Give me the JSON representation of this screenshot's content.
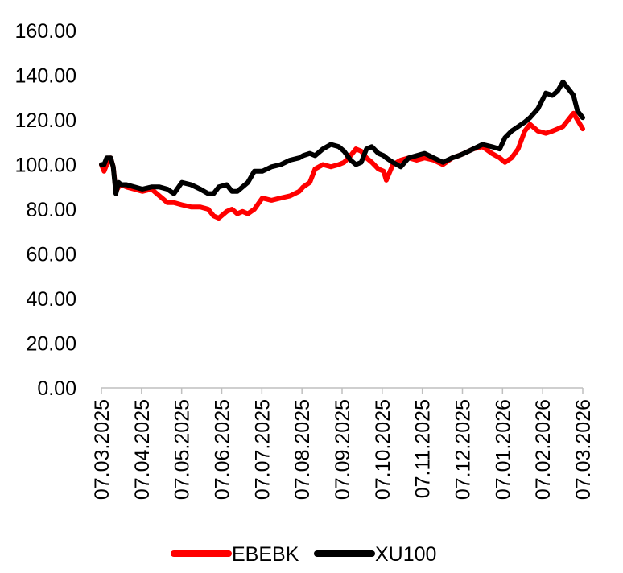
{
  "chart_data": {
    "type": "line",
    "title": "",
    "xlabel": "",
    "ylabel": "",
    "ylim": [
      0,
      160
    ],
    "y_ticks": [
      "0.00",
      "20.00",
      "40.00",
      "60.00",
      "80.00",
      "100.00",
      "120.00",
      "140.00",
      "160.00"
    ],
    "x_ticks": [
      "07.03.2025",
      "07.04.2025",
      "07.05.2025",
      "07.06.2025",
      "07.07.2025",
      "07.08.2025",
      "07.09.2025",
      "07.10.2025",
      "07.11.2025",
      "07.12.2025",
      "07.01.2026",
      "07.02.2026",
      "07.03.2026"
    ],
    "xlim": [
      "2025-03-07",
      "2026-03-07"
    ],
    "grid": false,
    "legend_position": "bottom",
    "series": [
      {
        "name": "EBEBK",
        "color": "#ff0000",
        "x": [
          "2025-03-07",
          "2025-03-09",
          "2025-03-11",
          "2025-03-14",
          "2025-03-16",
          "2025-03-18",
          "2025-03-20",
          "2025-03-22",
          "2025-03-26",
          "2025-04-01",
          "2025-04-07",
          "2025-04-14",
          "2025-04-20",
          "2025-04-26",
          "2025-05-01",
          "2025-05-07",
          "2025-05-14",
          "2025-05-21",
          "2025-05-27",
          "2025-05-31",
          "2025-06-04",
          "2025-06-10",
          "2025-06-14",
          "2025-06-18",
          "2025-06-22",
          "2025-06-26",
          "2025-07-01",
          "2025-07-07",
          "2025-07-14",
          "2025-07-21",
          "2025-07-28",
          "2025-08-04",
          "2025-08-07",
          "2025-08-12",
          "2025-08-16",
          "2025-08-22",
          "2025-08-28",
          "2025-09-03",
          "2025-09-07",
          "2025-09-12",
          "2025-09-16",
          "2025-09-20",
          "2025-09-24",
          "2025-09-28",
          "2025-10-03",
          "2025-10-07",
          "2025-10-09",
          "2025-10-14",
          "2025-10-20",
          "2025-10-26",
          "2025-11-01",
          "2025-11-07",
          "2025-11-14",
          "2025-11-21",
          "2025-11-28",
          "2025-12-03",
          "2025-12-07",
          "2025-12-14",
          "2025-12-21",
          "2025-12-28",
          "2026-01-03",
          "2026-01-07",
          "2026-01-12",
          "2026-01-17",
          "2026-01-22",
          "2026-01-26",
          "2026-02-01",
          "2026-02-07",
          "2026-02-12",
          "2026-02-16",
          "2026-02-20",
          "2026-02-24",
          "2026-02-28",
          "2026-03-03",
          "2026-03-07"
        ],
        "values": [
          100,
          97,
          100,
          103,
          99,
          88,
          90,
          91,
          90,
          89,
          88,
          89,
          86,
          83,
          83,
          82,
          81,
          81,
          80,
          77,
          76,
          79,
          80,
          78,
          79,
          78,
          80,
          85,
          84,
          85,
          86,
          88,
          90,
          92,
          98,
          100,
          99,
          100,
          101,
          104,
          107,
          106,
          103,
          101,
          98,
          97,
          93,
          100,
          102,
          103,
          102,
          103,
          102,
          100,
          103,
          104,
          105,
          107,
          108,
          105,
          103,
          101,
          103,
          107,
          115,
          118,
          115,
          114,
          115,
          116,
          117,
          120,
          123,
          120,
          116
        ]
      },
      {
        "name": "XU100",
        "color": "#000000",
        "x": [
          "2025-03-07",
          "2025-03-09",
          "2025-03-11",
          "2025-03-14",
          "2025-03-16",
          "2025-03-18",
          "2025-03-20",
          "2025-03-22",
          "2025-03-26",
          "2025-04-01",
          "2025-04-07",
          "2025-04-14",
          "2025-04-20",
          "2025-04-26",
          "2025-05-01",
          "2025-05-07",
          "2025-05-14",
          "2025-05-21",
          "2025-05-27",
          "2025-05-31",
          "2025-06-04",
          "2025-06-10",
          "2025-06-14",
          "2025-06-18",
          "2025-06-22",
          "2025-06-26",
          "2025-07-01",
          "2025-07-07",
          "2025-07-14",
          "2025-07-21",
          "2025-07-28",
          "2025-08-04",
          "2025-08-07",
          "2025-08-12",
          "2025-08-16",
          "2025-08-22",
          "2025-08-28",
          "2025-09-03",
          "2025-09-07",
          "2025-09-12",
          "2025-09-16",
          "2025-09-20",
          "2025-09-24",
          "2025-09-28",
          "2025-10-03",
          "2025-10-07",
          "2025-10-09",
          "2025-10-14",
          "2025-10-20",
          "2025-10-26",
          "2025-11-01",
          "2025-11-07",
          "2025-11-14",
          "2025-11-21",
          "2025-11-28",
          "2025-12-03",
          "2025-12-07",
          "2025-12-14",
          "2025-12-21",
          "2025-12-28",
          "2026-01-03",
          "2026-01-07",
          "2026-01-12",
          "2026-01-17",
          "2026-01-22",
          "2026-01-26",
          "2026-02-01",
          "2026-02-07",
          "2026-02-12",
          "2026-02-16",
          "2026-02-20",
          "2026-02-24",
          "2026-02-28",
          "2026-03-03",
          "2026-03-07"
        ],
        "values": [
          100,
          100,
          103,
          103,
          99,
          87,
          92,
          91,
          91,
          90,
          89,
          90,
          90,
          89,
          87,
          92,
          91,
          89,
          87,
          87,
          90,
          91,
          88,
          88,
          90,
          92,
          97,
          97,
          99,
          100,
          102,
          103,
          104,
          105,
          104,
          107,
          109,
          108,
          106,
          102,
          100,
          101,
          107,
          108,
          105,
          104,
          103,
          101,
          99,
          103,
          104,
          105,
          103,
          101,
          103,
          104,
          105,
          107,
          109,
          108,
          107,
          112,
          115,
          117,
          119,
          121,
          125,
          132,
          131,
          133,
          137,
          134,
          131,
          124,
          121
        ]
      }
    ]
  }
}
